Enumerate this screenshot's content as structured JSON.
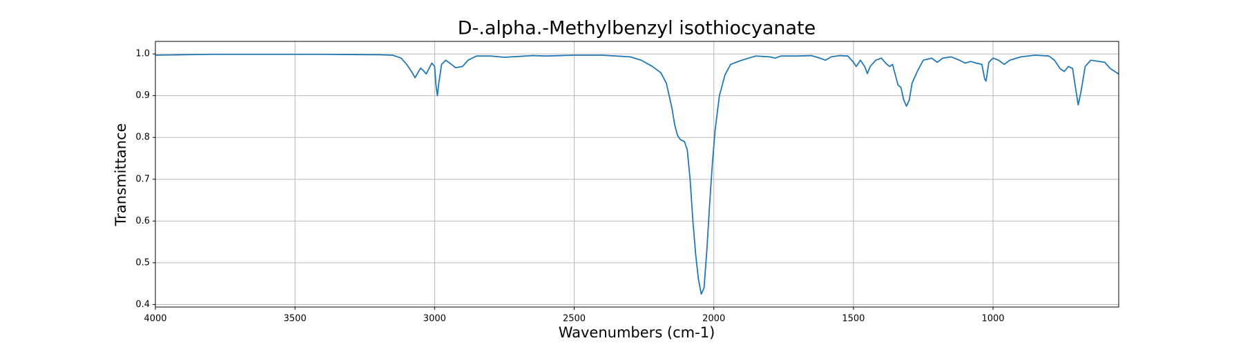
{
  "chart_data": {
    "type": "line",
    "title": "D-.alpha.-Methylbenzyl isothiocyanate",
    "xlabel": "Wavenumbers (cm-1)",
    "ylabel": "Transmittance",
    "color": "#1f77b4",
    "grid": true,
    "xlim": [
      4000,
      550
    ],
    "ylim": [
      0.394,
      1.03
    ],
    "xticks": [
      4000,
      3500,
      3000,
      2500,
      2000,
      1500,
      1000
    ],
    "yticks": [
      0.4,
      0.5,
      0.6,
      0.7,
      0.8,
      0.9,
      {
        "value": 1,
        "label": "1.0"
      }
    ],
    "x": [
      4000,
      3900,
      3800,
      3600,
      3400,
      3200,
      3150,
      3120,
      3100,
      3080,
      3070,
      3060,
      3050,
      3040,
      3030,
      3020,
      3010,
      3000,
      2995,
      2990,
      2985,
      2975,
      2960,
      2940,
      2925,
      2900,
      2880,
      2850,
      2800,
      2750,
      2700,
      2650,
      2600,
      2550,
      2500,
      2400,
      2350,
      2300,
      2260,
      2220,
      2190,
      2170,
      2150,
      2140,
      2130,
      2120,
      2105,
      2095,
      2085,
      2075,
      2065,
      2055,
      2045,
      2035,
      2025,
      2015,
      2005,
      1995,
      1980,
      1960,
      1940,
      1900,
      1850,
      1800,
      1780,
      1760,
      1700,
      1650,
      1620,
      1600,
      1580,
      1550,
      1520,
      1500,
      1490,
      1475,
      1460,
      1450,
      1440,
      1420,
      1400,
      1380,
      1370,
      1360,
      1350,
      1340,
      1330,
      1320,
      1310,
      1300,
      1290,
      1270,
      1250,
      1220,
      1200,
      1180,
      1150,
      1120,
      1100,
      1080,
      1060,
      1040,
      1030,
      1025,
      1015,
      1000,
      980,
      960,
      940,
      900,
      850,
      800,
      780,
      760,
      745,
      730,
      715,
      705,
      695,
      685,
      670,
      650,
      600,
      580,
      550
    ],
    "values": [
      0.997,
      0.998,
      0.999,
      0.999,
      0.999,
      0.998,
      0.997,
      0.99,
      0.975,
      0.955,
      0.943,
      0.955,
      0.966,
      0.96,
      0.952,
      0.965,
      0.978,
      0.97,
      0.925,
      0.9,
      0.93,
      0.975,
      0.985,
      0.975,
      0.967,
      0.97,
      0.985,
      0.995,
      0.995,
      0.992,
      0.994,
      0.996,
      0.995,
      0.996,
      0.997,
      0.997,
      0.995,
      0.993,
      0.985,
      0.97,
      0.955,
      0.93,
      0.87,
      0.83,
      0.805,
      0.795,
      0.79,
      0.77,
      0.7,
      0.6,
      0.52,
      0.46,
      0.425,
      0.44,
      0.53,
      0.64,
      0.74,
      0.82,
      0.9,
      0.95,
      0.975,
      0.985,
      0.995,
      0.993,
      0.99,
      0.995,
      0.995,
      0.996,
      0.99,
      0.985,
      0.993,
      0.996,
      0.995,
      0.98,
      0.97,
      0.985,
      0.97,
      0.953,
      0.97,
      0.985,
      0.99,
      0.975,
      0.97,
      0.975,
      0.95,
      0.925,
      0.92,
      0.89,
      0.875,
      0.89,
      0.93,
      0.96,
      0.985,
      0.99,
      0.98,
      0.99,
      0.993,
      0.985,
      0.978,
      0.982,
      0.978,
      0.975,
      0.94,
      0.935,
      0.98,
      0.99,
      0.985,
      0.975,
      0.985,
      0.993,
      0.997,
      0.995,
      0.985,
      0.965,
      0.958,
      0.97,
      0.965,
      0.92,
      0.878,
      0.91,
      0.97,
      0.985,
      0.98,
      0.965,
      0.952
    ]
  }
}
